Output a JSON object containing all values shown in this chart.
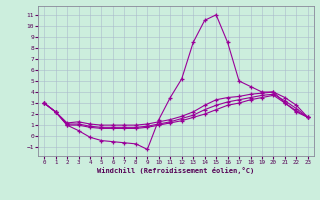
{
  "xlabel": "Windchill (Refroidissement éolien,°C)",
  "xlim": [
    -0.5,
    23.5
  ],
  "ylim": [
    -1.8,
    11.8
  ],
  "yticks": [
    -1,
    0,
    1,
    2,
    3,
    4,
    5,
    6,
    7,
    8,
    9,
    10,
    11
  ],
  "xticks": [
    0,
    1,
    2,
    3,
    4,
    5,
    6,
    7,
    8,
    9,
    10,
    11,
    12,
    13,
    14,
    15,
    16,
    17,
    18,
    19,
    20,
    21,
    22,
    23
  ],
  "bg_color": "#cceedd",
  "line_color": "#990099",
  "grid_color": "#aabbcc",
  "curves": [
    {
      "x": [
        0,
        1,
        2,
        3,
        4,
        5,
        6,
        7,
        8,
        9,
        10,
        11,
        12,
        13,
        14,
        15,
        16,
        17,
        18,
        19,
        20,
        21,
        22,
        23
      ],
      "y": [
        3.0,
        2.2,
        1.0,
        0.5,
        -0.1,
        -0.4,
        -0.5,
        -0.6,
        -0.7,
        -1.2,
        1.5,
        3.5,
        5.2,
        8.5,
        10.5,
        11.0,
        8.5,
        5.0,
        4.5,
        4.0,
        4.0,
        3.0,
        2.2,
        1.7
      ]
    },
    {
      "x": [
        0,
        1,
        2,
        3,
        4,
        5,
        6,
        7,
        8,
        9,
        10,
        11,
        12,
        13,
        14,
        15,
        16,
        17,
        18,
        19,
        20,
        21,
        22,
        23
      ],
      "y": [
        3.0,
        2.2,
        1.2,
        1.3,
        1.1,
        1.0,
        1.0,
        1.0,
        1.0,
        1.1,
        1.3,
        1.5,
        1.8,
        2.2,
        2.8,
        3.3,
        3.5,
        3.6,
        3.8,
        3.9,
        4.0,
        3.5,
        2.8,
        1.7
      ]
    },
    {
      "x": [
        0,
        1,
        2,
        3,
        4,
        5,
        6,
        7,
        8,
        9,
        10,
        11,
        12,
        13,
        14,
        15,
        16,
        17,
        18,
        19,
        20,
        21,
        22,
        23
      ],
      "y": [
        3.0,
        2.2,
        1.1,
        1.1,
        0.9,
        0.8,
        0.8,
        0.8,
        0.8,
        0.9,
        1.1,
        1.3,
        1.6,
        1.9,
        2.4,
        2.8,
        3.1,
        3.3,
        3.5,
        3.7,
        3.8,
        3.2,
        2.5,
        1.7
      ]
    },
    {
      "x": [
        0,
        1,
        2,
        3,
        4,
        5,
        6,
        7,
        8,
        9,
        10,
        11,
        12,
        13,
        14,
        15,
        16,
        17,
        18,
        19,
        20,
        21,
        22,
        23
      ],
      "y": [
        3.0,
        2.2,
        1.0,
        1.0,
        0.8,
        0.7,
        0.7,
        0.7,
        0.7,
        0.8,
        1.0,
        1.2,
        1.4,
        1.7,
        2.0,
        2.4,
        2.8,
        3.0,
        3.3,
        3.5,
        3.7,
        3.0,
        2.3,
        1.7
      ]
    }
  ]
}
